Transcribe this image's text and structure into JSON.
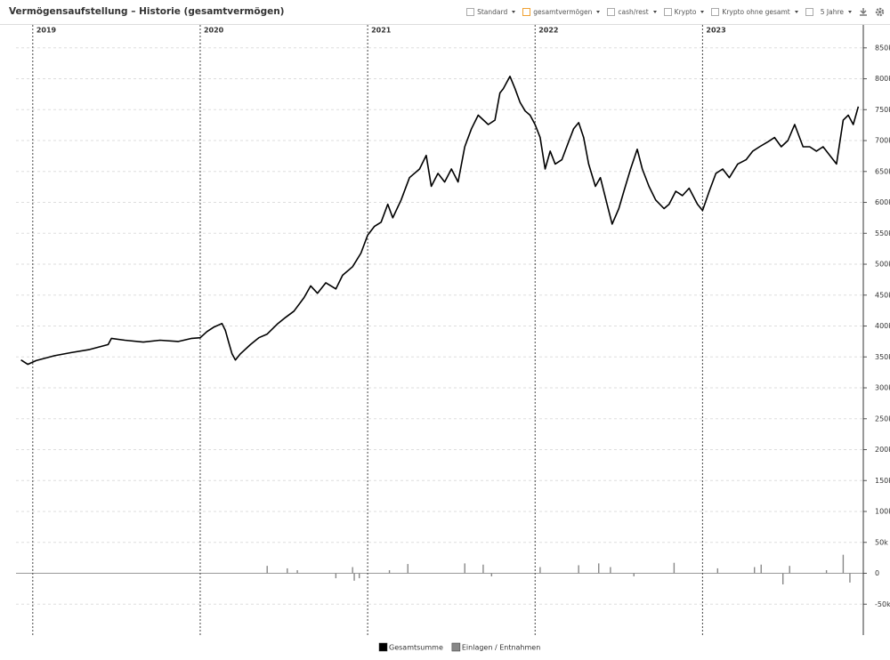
{
  "header": {
    "title": "Vermögensaufstellung – Historie (gesamtvermögen)"
  },
  "toolbar": [
    "Standard",
    "gesamtvermögen",
    "cash/rest",
    "Krypto",
    "Krypto ohne gesamt",
    "5 Jahre"
  ],
  "chart_data": {
    "type": "line",
    "xlim": [
      2018.9,
      2023.96
    ],
    "xticks": [
      2019,
      2020,
      2021,
      2022,
      2023
    ],
    "ylim": [
      -100000,
      890000
    ],
    "yticks": [
      {
        "value": -50000,
        "label": "-50k"
      },
      0,
      {
        "value": 50000,
        "label": "50k"
      },
      {
        "value": 100000,
        "label": "100k"
      },
      {
        "value": 150000,
        "label": "150k"
      },
      {
        "value": 200000,
        "label": "200k"
      },
      {
        "value": 250000,
        "label": "250k"
      },
      {
        "value": 300000,
        "label": "300k"
      },
      {
        "value": 350000,
        "label": "350k"
      },
      {
        "value": 400000,
        "label": "400k"
      },
      {
        "value": 450000,
        "label": "450k"
      },
      {
        "value": 500000,
        "label": "500k"
      },
      {
        "value": 550000,
        "label": "550k"
      },
      {
        "value": 600000,
        "label": "600k"
      },
      {
        "value": 650000,
        "label": "650k"
      },
      {
        "value": 700000,
        "label": "700k"
      },
      {
        "value": 750000,
        "label": "750k"
      },
      {
        "value": 800000,
        "label": "800k"
      },
      {
        "value": 850000,
        "label": "850k"
      }
    ],
    "grid": true,
    "series": [
      {
        "name": "Gesamtsumme",
        "color": "#000000",
        "type": "line",
        "x": [
          2018.93,
          2018.97,
          2019.02,
          2019.13,
          2019.23,
          2019.34,
          2019.45,
          2019.47,
          2019.55,
          2019.66,
          2019.76,
          2019.87,
          2019.95,
          2020.0,
          2020.04,
          2020.08,
          2020.13,
          2020.15,
          2020.17,
          2020.19,
          2020.21,
          2020.24,
          2020.3,
          2020.35,
          2020.4,
          2020.46,
          2020.51,
          2020.56,
          2020.62,
          2020.66,
          2020.7,
          2020.75,
          2020.81,
          2020.85,
          2020.91,
          2020.96,
          2021.0,
          2021.04,
          2021.08,
          2021.12,
          2021.15,
          2021.2,
          2021.25,
          2021.31,
          2021.35,
          2021.38,
          2021.42,
          2021.46,
          2021.5,
          2021.54,
          2021.58,
          2021.62,
          2021.66,
          2021.72,
          2021.76,
          2021.79,
          2021.81,
          2021.85,
          2021.88,
          2021.91,
          2021.94,
          2021.97,
          2022.0,
          2022.03,
          2022.06,
          2022.09,
          2022.12,
          2022.16,
          2022.2,
          2022.23,
          2022.26,
          2022.29,
          2022.32,
          2022.36,
          2022.39,
          2022.43,
          2022.46,
          2022.5,
          2022.53,
          2022.57,
          2022.61,
          2022.64,
          2022.68,
          2022.72,
          2022.77,
          2022.8,
          2022.84,
          2022.88,
          2022.92,
          2022.97,
          2023.0,
          2023.04,
          2023.08,
          2023.12,
          2023.16,
          2023.21,
          2023.26,
          2023.3,
          2023.34,
          2023.39,
          2023.43,
          2023.47,
          2023.51,
          2023.55,
          2023.6,
          2023.64,
          2023.68,
          2023.72,
          2023.76,
          2023.8,
          2023.82,
          2023.84,
          2023.87,
          2023.9,
          2023.93
        ],
        "values": [
          345000,
          338000,
          344000,
          352000,
          357000,
          362000,
          370000,
          380000,
          377000,
          374000,
          377000,
          375000,
          380000,
          381000,
          391000,
          398000,
          404000,
          393000,
          374000,
          355000,
          345000,
          355000,
          370000,
          381000,
          387000,
          403000,
          414000,
          424000,
          446000,
          465000,
          453000,
          470000,
          460000,
          482000,
          496000,
          518000,
          547000,
          561000,
          568000,
          597000,
          575000,
          604000,
          640000,
          654000,
          676000,
          626000,
          647000,
          633000,
          654000,
          633000,
          690000,
          719000,
          741000,
          726000,
          733000,
          777000,
          784000,
          804000,
          784000,
          762000,
          748000,
          741000,
          726000,
          705000,
          654000,
          683000,
          662000,
          669000,
          698000,
          719000,
          729000,
          705000,
          662000,
          626000,
          640000,
          597000,
          565000,
          590000,
          618000,
          654000,
          686000,
          654000,
          626000,
          604000,
          590000,
          597000,
          618000,
          611000,
          623000,
          597000,
          587000,
          618000,
          647000,
          654000,
          640000,
          662000,
          669000,
          683000,
          690000,
          698000,
          705000,
          690000,
          700000,
          726000,
          690000,
          690000,
          683000,
          690000,
          676000,
          662000,
          698000,
          733000,
          741000,
          726000,
          755000
        ]
      },
      {
        "name": "Einlagen / Entnahmen",
        "color": "#888888",
        "type": "bar",
        "x": [
          2020.4,
          2020.52,
          2020.58,
          2020.81,
          2020.91,
          2020.92,
          2020.95,
          2021.13,
          2021.24,
          2021.58,
          2021.69,
          2021.74,
          2022.03,
          2022.26,
          2022.38,
          2022.45,
          2022.59,
          2022.83,
          2023.09,
          2023.31,
          2023.35,
          2023.48,
          2023.52,
          2023.74,
          2023.84,
          2023.88
        ],
        "values": [
          12000,
          8000,
          5000,
          -8000,
          10000,
          -12000,
          -8000,
          5000,
          15000,
          16000,
          14000,
          -5000,
          10000,
          13000,
          16000,
          10000,
          -5000,
          17000,
          8000,
          10000,
          14000,
          -18000,
          12000,
          5000,
          30000,
          -15000
        ]
      }
    ],
    "legend": "bottom"
  }
}
